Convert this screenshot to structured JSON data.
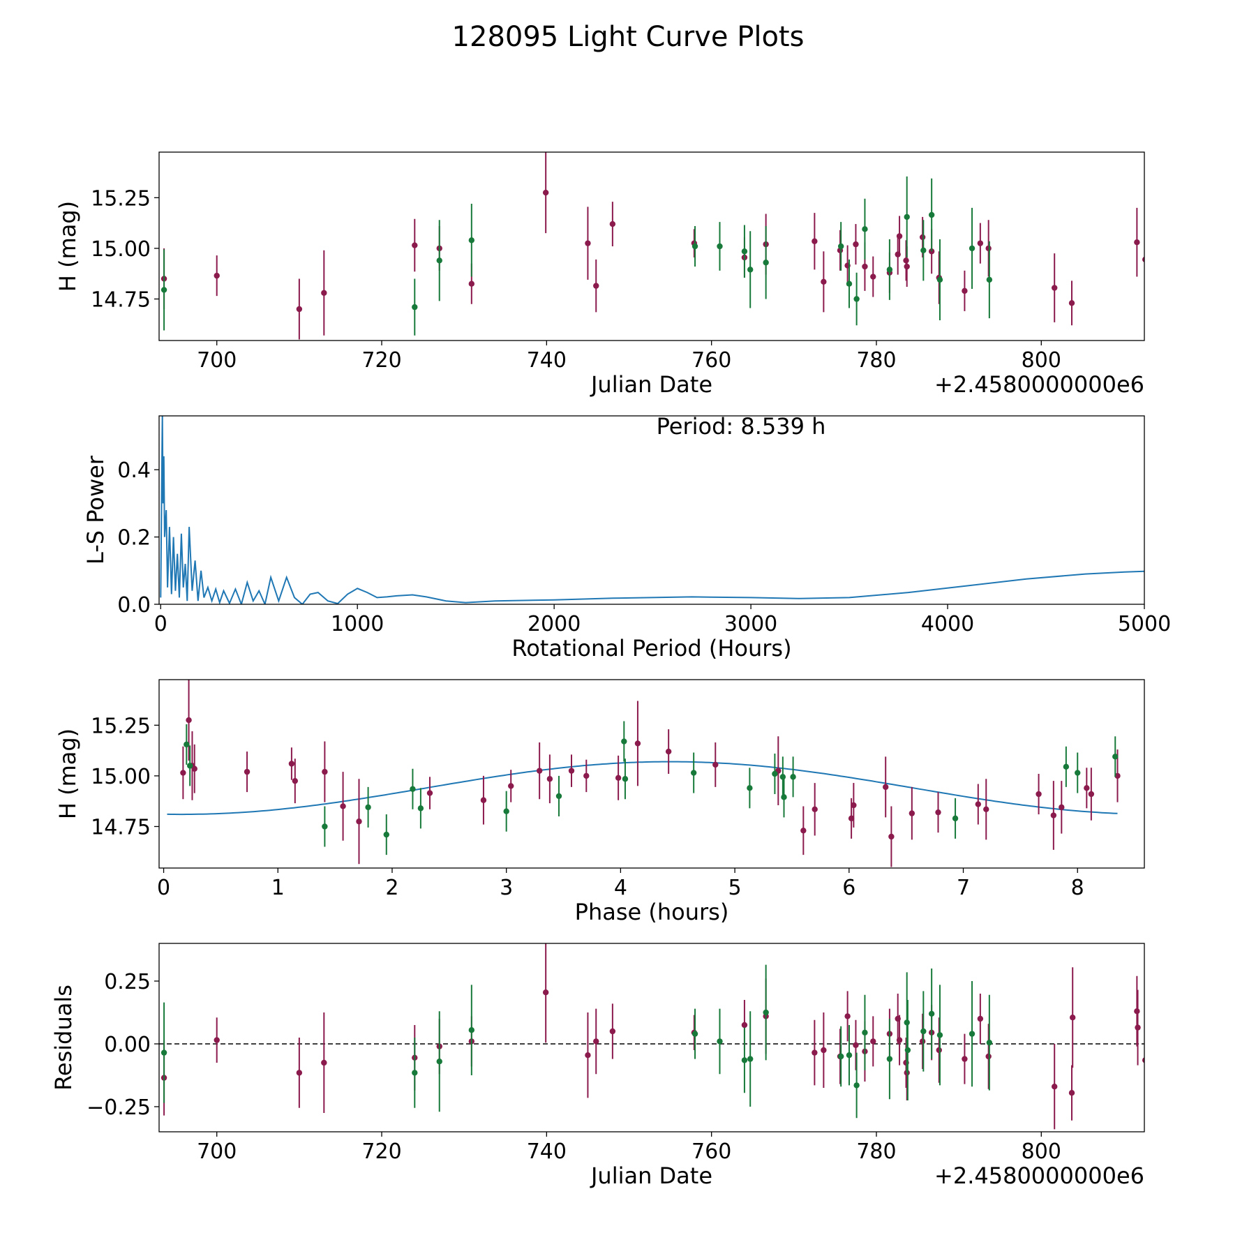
{
  "figure": {
    "title": "128095 Light Curve Plots"
  },
  "colors": {
    "magenta": "#8b1a4d",
    "green": "#187a3a",
    "blue": "#1f77b4"
  },
  "chart_data": [
    {
      "id": "jd",
      "type": "scatter",
      "title": "",
      "xlabel": "Julian Date",
      "ylabel": "H (mag)",
      "offset_label": "+2.4580000000e6",
      "xlim": [
        693,
        812.5
      ],
      "ylim": [
        14.545,
        15.475
      ],
      "xticks": [
        700,
        720,
        740,
        760,
        780,
        800
      ],
      "yticks": [
        14.75,
        15.0,
        15.25
      ],
      "ytick_labels": [
        "14.75",
        "15.00",
        "15.25"
      ],
      "series": [
        {
          "name": "magenta",
          "x": [
            693.6,
            700.0,
            710.0,
            713.0,
            724.0,
            727.0,
            730.9,
            739.9,
            745.0,
            746.0,
            748.0,
            757.9,
            764.0,
            766.6,
            772.5,
            773.6,
            775.6,
            776.5,
            777.5,
            778.6,
            779.6,
            781.6,
            782.6,
            782.8,
            783.6,
            783.7,
            785.6,
            786.7,
            787.6,
            790.7,
            792.6,
            793.6,
            801.6,
            803.7,
            811.6,
            812.6
          ],
          "y": [
            14.85,
            14.865,
            14.7,
            14.78,
            15.015,
            15.0,
            14.825,
            15.275,
            15.025,
            14.815,
            15.12,
            15.025,
            14.955,
            15.02,
            15.035,
            14.835,
            14.99,
            14.915,
            15.02,
            14.91,
            14.86,
            14.88,
            14.97,
            15.06,
            14.94,
            14.91,
            15.055,
            14.985,
            14.855,
            14.79,
            15.025,
            15.0,
            14.805,
            14.73,
            15.03,
            14.945
          ],
          "err": [
            0.15,
            0.1,
            0.15,
            0.21,
            0.13,
            0.11,
            0.1,
            0.2,
            0.18,
            0.13,
            0.11,
            0.07,
            0.1,
            0.15,
            0.14,
            0.15,
            0.1,
            0.1,
            0.1,
            0.12,
            0.1,
            0.1,
            0.1,
            0.1,
            0.1,
            0.1,
            0.1,
            0.11,
            0.13,
            0.1,
            0.1,
            0.14,
            0.17,
            0.11,
            0.17,
            0.12
          ]
        },
        {
          "name": "green",
          "x": [
            693.6,
            724.0,
            727.0,
            730.9,
            758.0,
            761.0,
            764.0,
            764.7,
            766.6,
            775.7,
            776.7,
            777.6,
            778.6,
            781.6,
            783.7,
            785.7,
            786.7,
            787.7,
            791.6,
            793.7
          ],
          "y": [
            14.795,
            14.71,
            14.94,
            15.04,
            15.01,
            15.01,
            14.985,
            14.895,
            14.93,
            15.01,
            14.825,
            14.75,
            15.095,
            14.895,
            15.155,
            14.99,
            15.165,
            14.845,
            15.0,
            14.845
          ],
          "err": [
            0.2,
            0.14,
            0.2,
            0.18,
            0.1,
            0.12,
            0.13,
            0.19,
            0.18,
            0.12,
            0.12,
            0.13,
            0.15,
            0.15,
            0.2,
            0.15,
            0.18,
            0.2,
            0.2,
            0.19
          ]
        }
      ]
    },
    {
      "id": "ls",
      "type": "line",
      "title": "",
      "annotation": "Period: 8.539 h",
      "xlabel": "Rotational Period (Hours)",
      "ylabel": "L-S Power",
      "xlim": [
        -8,
        5000
      ],
      "ylim": [
        0,
        0.56
      ],
      "xticks": [
        0,
        1000,
        2000,
        3000,
        4000,
        5000
      ],
      "yticks": [
        0.0,
        0.2,
        0.4
      ],
      "ytick_labels": [
        "0.0",
        "0.2",
        "0.4"
      ],
      "series": [
        {
          "name": "L-S power",
          "x": [
            0,
            5,
            8.5,
            12,
            16,
            20,
            28,
            35,
            45,
            55,
            65,
            75,
            85,
            95,
            105,
            115,
            125,
            135,
            145,
            160,
            175,
            190,
            205,
            220,
            240,
            260,
            280,
            300,
            320,
            350,
            380,
            410,
            440,
            470,
            500,
            530,
            560,
            600,
            640,
            680,
            720,
            760,
            800,
            850,
            900,
            950,
            1000,
            1050,
            1100,
            1150,
            1200,
            1280,
            1350,
            1450,
            1550,
            1700,
            2000,
            2300,
            2700,
            3000,
            3250,
            3500,
            3800,
            4100,
            4400,
            4700,
            4900,
            5000
          ],
          "y": [
            0.02,
            0.35,
            0.56,
            0.3,
            0.44,
            0.2,
            0.28,
            0.05,
            0.23,
            0.03,
            0.2,
            0.04,
            0.15,
            0.02,
            0.21,
            0.05,
            0.12,
            0.01,
            0.23,
            0.04,
            0.13,
            0.01,
            0.1,
            0.02,
            0.05,
            0.01,
            0.045,
            0.005,
            0.04,
            0.003,
            0.045,
            0.0,
            0.065,
            0.01,
            0.04,
            0.0,
            0.08,
            0.01,
            0.08,
            0.02,
            0.0,
            0.03,
            0.035,
            0.01,
            0.002,
            0.03,
            0.047,
            0.035,
            0.02,
            0.022,
            0.025,
            0.028,
            0.022,
            0.01,
            0.005,
            0.01,
            0.013,
            0.018,
            0.022,
            0.02,
            0.017,
            0.02,
            0.035,
            0.055,
            0.075,
            0.09,
            0.096,
            0.098
          ]
        }
      ]
    },
    {
      "id": "phase",
      "type": "scatter",
      "title": "",
      "xlabel": "Phase (hours)",
      "ylabel": "H (mag)",
      "xlim": [
        -0.04,
        8.585
      ],
      "ylim": [
        14.545,
        15.475
      ],
      "xticks": [
        0,
        1,
        2,
        3,
        4,
        5,
        6,
        7,
        8
      ],
      "yticks": [
        14.75,
        15.0,
        15.25
      ],
      "ytick_labels": [
        "14.75",
        "15.00",
        "15.25"
      ],
      "fit": {
        "mean": 14.94,
        "amplitude": 0.13,
        "peak_phase": 4.43,
        "period": 8.539
      },
      "series": [
        {
          "name": "magenta",
          "x": [
            0.17,
            0.22,
            0.25,
            0.27,
            0.73,
            1.12,
            1.15,
            1.41,
            1.57,
            1.71,
            2.33,
            2.8,
            3.04,
            3.29,
            3.38,
            3.57,
            3.7,
            3.98,
            4.15,
            4.42,
            4.83,
            5.38,
            5.6,
            5.7,
            6.02,
            6.04,
            6.32,
            6.37,
            6.55,
            6.78,
            7.13,
            7.2,
            7.66,
            7.79,
            7.86,
            8.08,
            8.12,
            8.35
          ],
          "y": [
            15.015,
            15.275,
            15.05,
            15.035,
            15.02,
            15.06,
            14.975,
            15.02,
            14.85,
            14.775,
            14.915,
            14.88,
            14.95,
            15.025,
            14.985,
            15.025,
            15.0,
            14.99,
            15.16,
            15.12,
            15.055,
            15.025,
            14.73,
            14.835,
            14.79,
            14.855,
            14.945,
            14.7,
            14.815,
            14.82,
            14.86,
            14.835,
            14.91,
            14.805,
            14.845,
            14.94,
            14.91,
            15.0
          ],
          "err": [
            0.13,
            0.2,
            0.17,
            0.12,
            0.1,
            0.08,
            0.11,
            0.15,
            0.17,
            0.21,
            0.08,
            0.12,
            0.08,
            0.14,
            0.12,
            0.08,
            0.08,
            0.11,
            0.21,
            0.11,
            0.11,
            0.17,
            0.12,
            0.13,
            0.1,
            0.11,
            0.15,
            0.15,
            0.13,
            0.1,
            0.1,
            0.15,
            0.1,
            0.17,
            0.13,
            0.1,
            0.13,
            0.13
          ]
        },
        {
          "name": "green",
          "x": [
            0.2,
            0.23,
            1.41,
            1.79,
            1.95,
            2.18,
            2.25,
            3.0,
            3.46,
            4.03,
            4.04,
            4.64,
            5.13,
            5.35,
            5.42,
            5.43,
            5.51,
            6.93,
            7.9,
            8.0,
            8.33
          ],
          "y": [
            15.155,
            15.05,
            14.75,
            14.845,
            14.71,
            14.935,
            14.84,
            14.825,
            14.9,
            15.17,
            14.985,
            15.015,
            14.94,
            15.01,
            14.995,
            14.895,
            14.995,
            14.79,
            15.045,
            15.015,
            15.095
          ]
        }
      ]
    },
    {
      "id": "res",
      "type": "scatter",
      "title": "",
      "xlabel": "Julian Date",
      "ylabel": "Residuals",
      "offset_label": "+2.4580000000e6",
      "xlim": [
        693,
        812.5
      ],
      "ylim": [
        -0.35,
        0.4
      ],
      "xticks": [
        700,
        720,
        740,
        760,
        780,
        800
      ],
      "yticks": [
        -0.25,
        0.0,
        0.25
      ],
      "ytick_labels": [
        "−0.25",
        "0.00",
        "0.25"
      ],
      "series": [
        {
          "name": "magenta",
          "x": [
            693.6,
            700.0,
            710.0,
            713.0,
            724.0,
            727.0,
            730.9,
            739.9,
            745.0,
            746.0,
            748.0,
            757.9,
            764.0,
            766.6,
            772.5,
            773.6,
            775.6,
            776.5,
            777.5,
            778.6,
            779.6,
            781.6,
            782.6,
            782.8,
            783.6,
            783.7,
            785.6,
            786.7,
            787.6,
            790.7,
            792.6,
            793.6,
            801.6,
            803.7,
            803.8,
            811.6,
            811.7,
            812.6
          ],
          "y": [
            -0.135,
            0.015,
            -0.115,
            -0.075,
            -0.055,
            -0.01,
            0.01,
            0.205,
            -0.045,
            0.01,
            0.05,
            0.045,
            0.075,
            0.11,
            -0.035,
            -0.025,
            -0.05,
            0.11,
            -0.005,
            -0.03,
            0.01,
            0.04,
            0.1,
            0.015,
            -0.075,
            -0.115,
            0.01,
            0.045,
            -0.025,
            -0.06,
            0.1,
            -0.05,
            -0.17,
            -0.195,
            0.105,
            0.13,
            0.065,
            -0.065
          ],
          "err": [
            0.15,
            0.09,
            0.14,
            0.2,
            0.13,
            0.11,
            0.1,
            0.2,
            0.17,
            0.13,
            0.11,
            0.07,
            0.1,
            0.15,
            0.13,
            0.15,
            0.11,
            0.1,
            0.1,
            0.12,
            0.1,
            0.1,
            0.1,
            0.1,
            0.1,
            0.11,
            0.11,
            0.11,
            0.13,
            0.1,
            0.1,
            0.13,
            0.17,
            0.11,
            0.2,
            0.14,
            0.15,
            0.12
          ]
        },
        {
          "name": "green",
          "x": [
            693.6,
            724.0,
            727.0,
            730.9,
            758.0,
            761.0,
            764.0,
            764.7,
            766.6,
            775.7,
            776.7,
            777.6,
            778.6,
            781.6,
            783.7,
            783.8,
            785.7,
            786.7,
            787.7,
            791.6,
            793.7
          ],
          "y": [
            -0.035,
            -0.115,
            -0.07,
            0.055,
            0.04,
            0.01,
            -0.065,
            -0.06,
            0.125,
            -0.05,
            -0.045,
            -0.165,
            0.045,
            -0.06,
            0.085,
            -0.025,
            0.05,
            0.12,
            0.035,
            0.04,
            0.005
          ],
          "err": [
            0.2,
            0.14,
            0.2,
            0.18,
            0.1,
            0.13,
            0.13,
            0.19,
            0.19,
            0.12,
            0.12,
            0.13,
            0.15,
            0.16,
            0.2,
            0.2,
            0.16,
            0.18,
            0.2,
            0.21,
            0.19
          ]
        }
      ]
    }
  ]
}
